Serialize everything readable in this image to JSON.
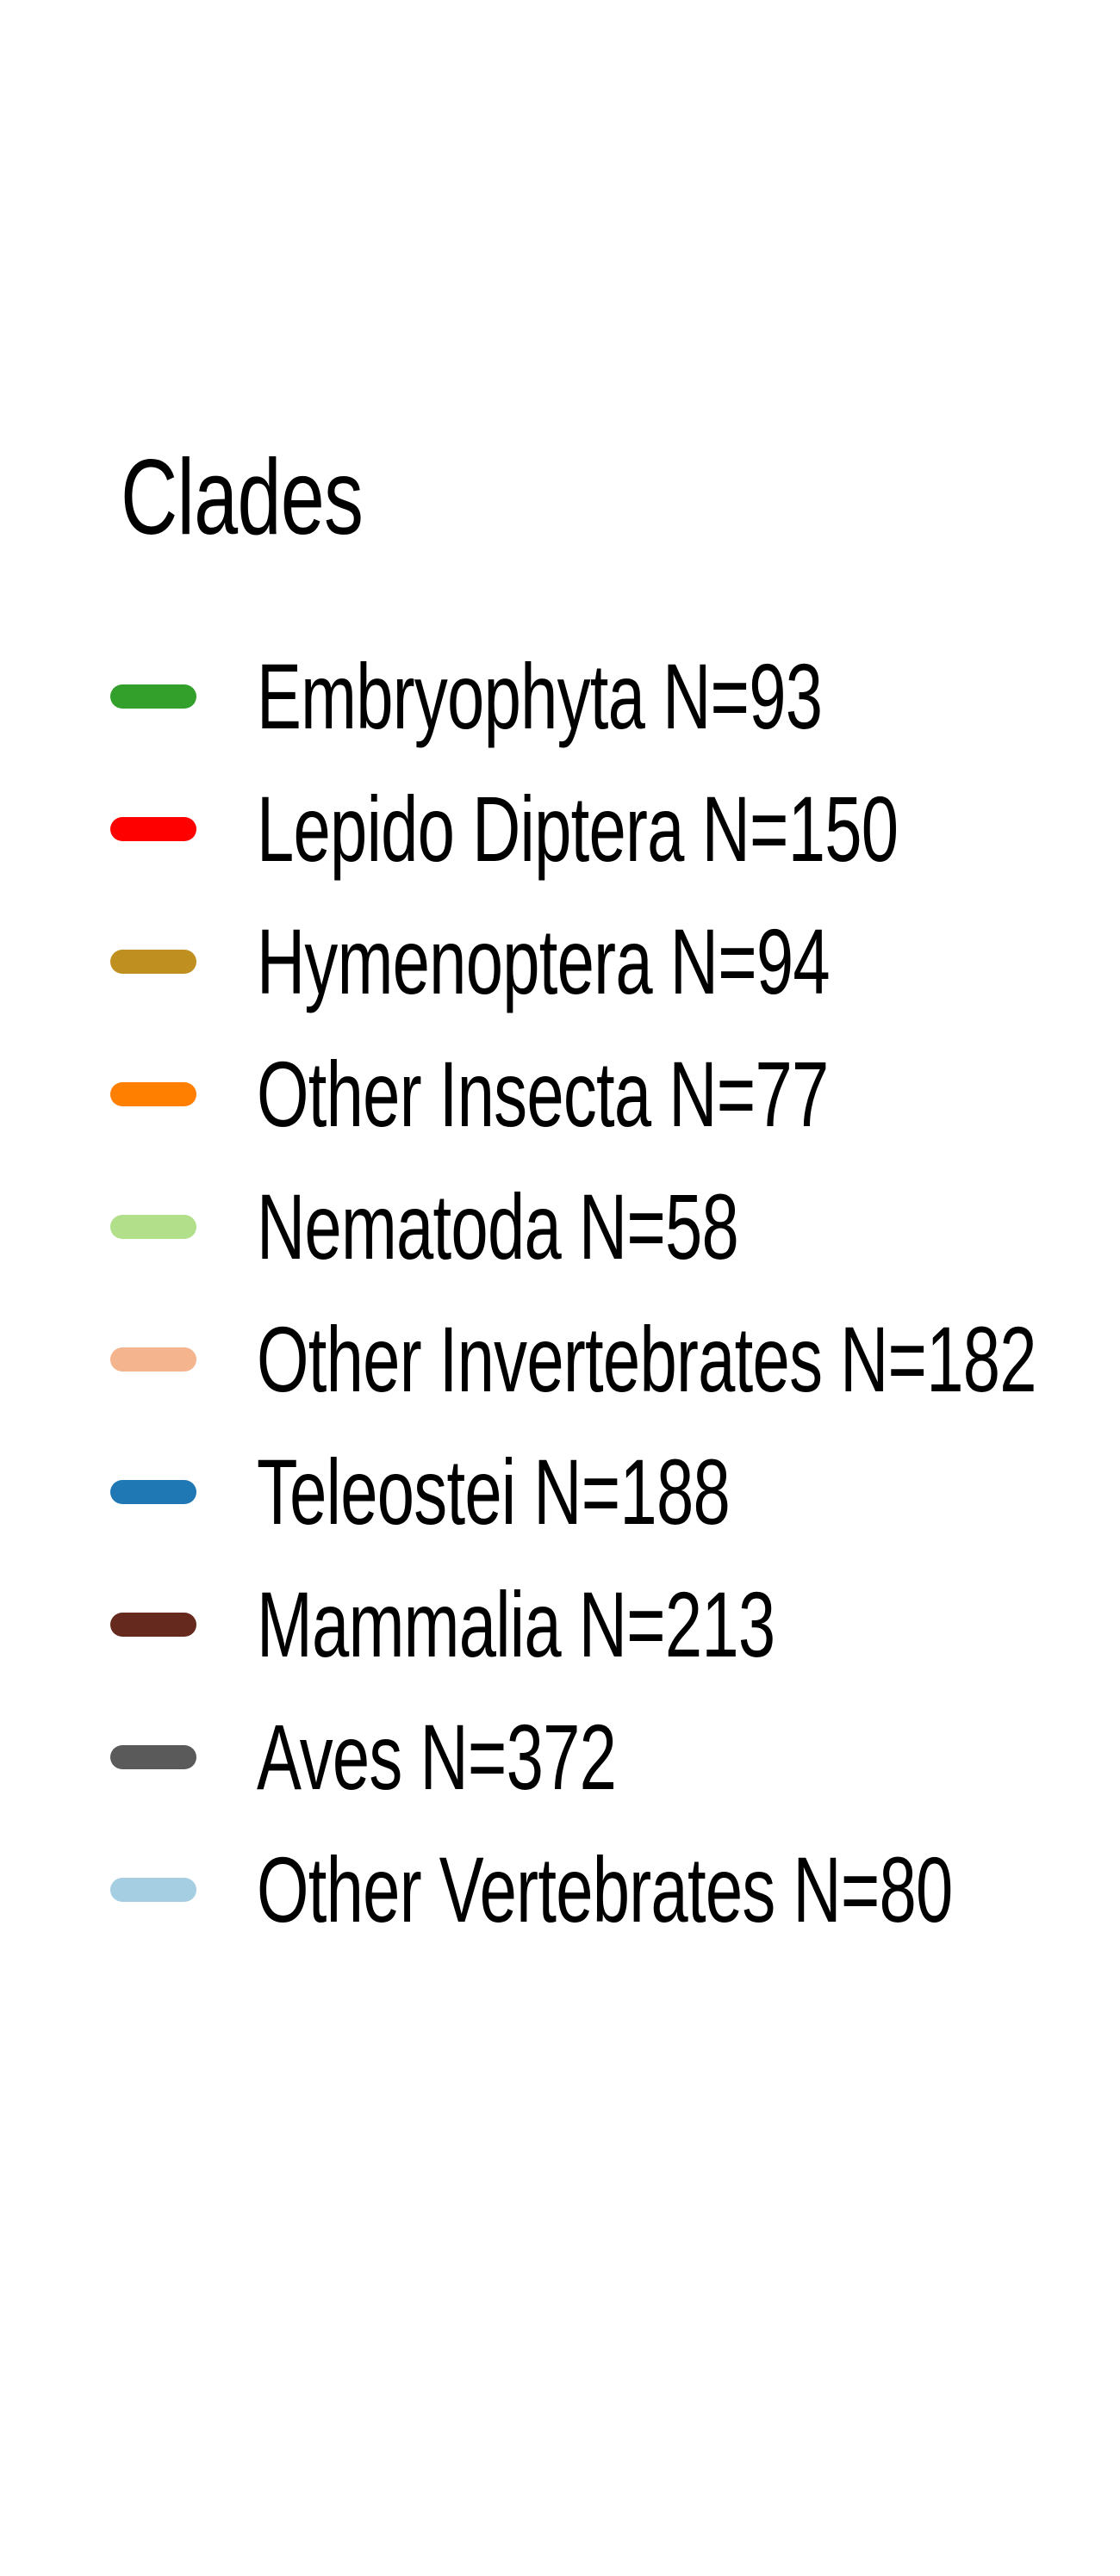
{
  "chart_data": {
    "type": "legend",
    "title": "Clades",
    "items": [
      {
        "label": "Embryophyta N=93",
        "name": "Embryophyta",
        "n": 93,
        "color": "#33a02c"
      },
      {
        "label": "Lepido Diptera N=150",
        "name": "Lepido Diptera",
        "n": 150,
        "color": "#ff0000"
      },
      {
        "label": "Hymenoptera N=94",
        "name": "Hymenoptera",
        "n": 94,
        "color": "#bf9020"
      },
      {
        "label": "Other Insecta N=77",
        "name": "Other Insecta",
        "n": 77,
        "color": "#ff7f00"
      },
      {
        "label": "Nematoda N=58",
        "name": "Nematoda",
        "n": 58,
        "color": "#b2df8a"
      },
      {
        "label": "Other Invertebrates N=182",
        "name": "Other Invertebrates",
        "n": 182,
        "color": "#f4b48e"
      },
      {
        "label": "Teleostei N=188",
        "name": "Teleostei",
        "n": 188,
        "color": "#1f78b4"
      },
      {
        "label": "Mammalia N=213",
        "name": "Mammalia",
        "n": 213,
        "color": "#652a1d"
      },
      {
        "label": "Aves N=372",
        "name": "Aves",
        "n": 372,
        "color": "#5a5a5a"
      },
      {
        "label": "Other Vertebrates N=80",
        "name": "Other Vertebrates",
        "n": 80,
        "color": "#a6cee3"
      }
    ]
  }
}
